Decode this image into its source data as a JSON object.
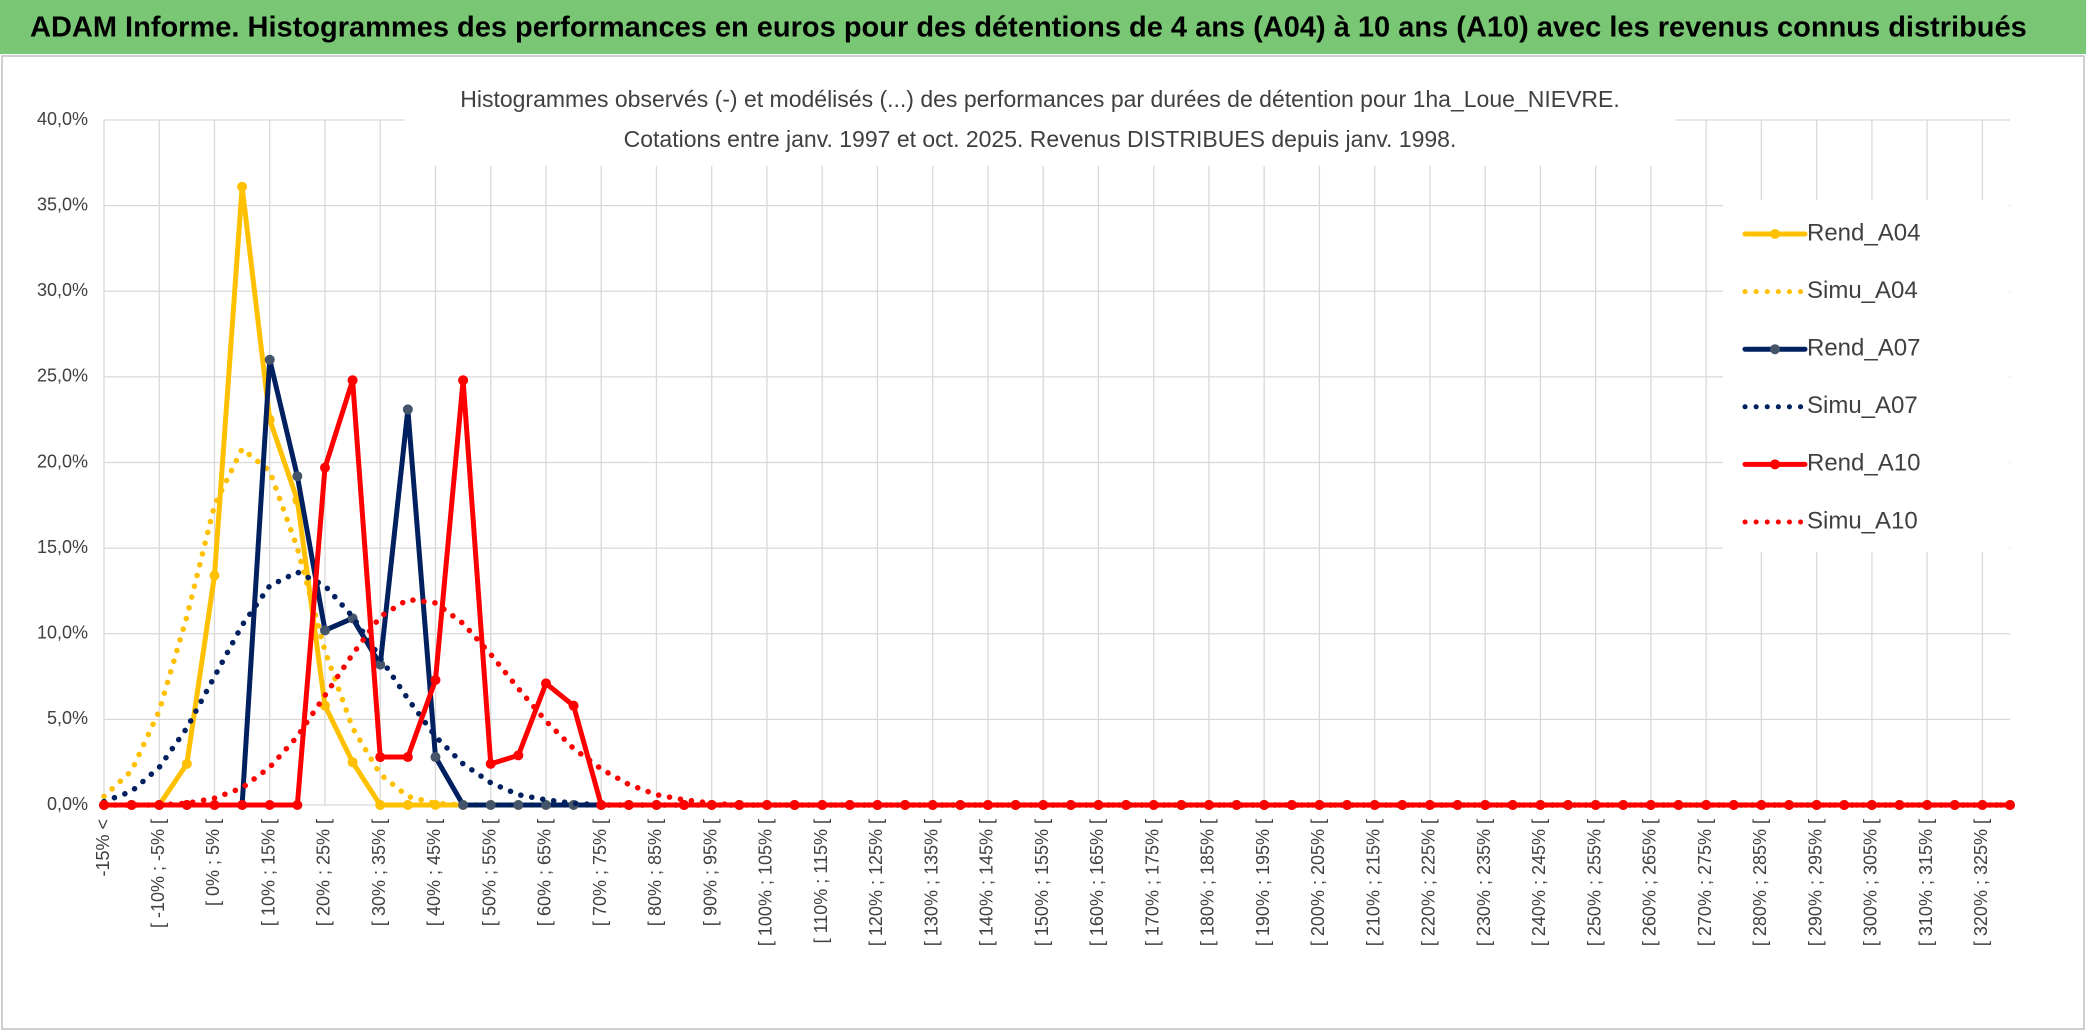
{
  "header": {
    "title": "ADAM Informe. Histogrammes des performances en euros pour des détentions de 4 ans (A04) à 10 ans (A10) avec les revenus connus distribués"
  },
  "chart_data": {
    "type": "line",
    "title": "Histogrammes observés (-) et modélisés (...) des performances par durées de détention pour 1ha_Loue_NIEVRE.",
    "subtitle": "Cotations entre janv. 1997 et oct. 2025. Revenus DISTRIBUES depuis janv. 1998.",
    "categories": [
      "-15% <",
      null,
      "[ -10% ; -5% [",
      null,
      "[ 0% ; 5% [",
      null,
      "[ 10% ; 15% [",
      null,
      "[ 20% ; 25% [",
      null,
      "[ 30% ; 35% [",
      null,
      "[ 40% ; 45% [",
      null,
      "[ 50% ; 55% [",
      null,
      "[ 60% ; 65% [",
      null,
      "[ 70% ; 75% [",
      null,
      "[ 80% ; 85% [",
      null,
      "[ 90% ; 95% [",
      null,
      "[ 100% ; 105% [",
      null,
      "[ 110% ; 115% [",
      null,
      "[ 120% ; 125% [",
      null,
      "[ 130% ; 135% [",
      null,
      "[ 140% ; 145% [",
      null,
      "[ 150% ; 155% [",
      null,
      "[ 160% ; 165% [",
      null,
      "[ 170% ; 175% [",
      null,
      "[ 180% ; 185% [",
      null,
      "[ 190% ; 195% [",
      null,
      "[ 200% ; 205% [",
      null,
      "[ 210% ; 215% [",
      null,
      "[ 220% ; 225% [",
      null,
      "[ 230% ; 235% [",
      null,
      "[ 240% ; 245% [",
      null,
      "[ 250% ; 255% [",
      null,
      "[ 260% ; 265% [",
      null,
      "[ 270% ; 275% [",
      null,
      "[ 280% ; 285% [",
      null,
      "[ 290% ; 295% [",
      null,
      "[ 300% ; 305% [",
      null,
      "[ 310% ; 315% [",
      null,
      "[ 320% ; 325% [",
      null
    ],
    "series": [
      {
        "name": "Rend_A04",
        "color": "#ffc000",
        "marker_color": "#ffc000",
        "dotted": false,
        "markers": true,
        "values": [
          0,
          0,
          0,
          2.4,
          13.4,
          36.1,
          22.5,
          17.8,
          5.8,
          2.5,
          0,
          0,
          0,
          0,
          0,
          0,
          0,
          0,
          0,
          0,
          0,
          0,
          0,
          0,
          0,
          0,
          0,
          0,
          0,
          0,
          0,
          0,
          0,
          0,
          0,
          0,
          0,
          0,
          0,
          0,
          0,
          0,
          0,
          0,
          0,
          0,
          0,
          0,
          0,
          0,
          0,
          0,
          0,
          0,
          0,
          0,
          0,
          0,
          0,
          0,
          0,
          0,
          0,
          0,
          0,
          0,
          0,
          0,
          0,
          0
        ]
      },
      {
        "name": "Simu_A04",
        "color": "#ffc000",
        "dotted": true,
        "markers": false,
        "values": [
          0.5,
          2,
          5.5,
          11,
          17.5,
          20.8,
          19.5,
          15,
          9,
          4.5,
          1.8,
          0.5,
          0.1,
          0,
          0,
          0,
          0,
          0,
          0,
          0,
          0,
          0,
          0,
          0,
          0,
          0,
          0,
          0,
          0,
          0,
          0,
          0,
          0,
          0,
          0,
          0,
          0,
          0,
          0,
          0,
          0,
          0,
          0,
          0,
          0,
          0,
          0,
          0,
          0,
          0,
          0,
          0,
          0,
          0,
          0,
          0,
          0,
          0,
          0,
          0,
          0,
          0,
          0,
          0,
          0,
          0,
          0,
          0,
          0,
          0
        ]
      },
      {
        "name": "Rend_A07",
        "color": "#002060",
        "marker_color": "#44546a",
        "dotted": false,
        "markers": true,
        "values": [
          0,
          0,
          0,
          0,
          0,
          0,
          26,
          19.2,
          10.2,
          10.9,
          8.2,
          23.1,
          2.8,
          0,
          0,
          0,
          0,
          0,
          0,
          0,
          0,
          0,
          0,
          0,
          0,
          0,
          0,
          0,
          0,
          0,
          0,
          0,
          0,
          0,
          0,
          0,
          0,
          0,
          0,
          0,
          0,
          0,
          0,
          0,
          0,
          0,
          0,
          0,
          0,
          0,
          0,
          0,
          0,
          0,
          0,
          0,
          0,
          0,
          0,
          0,
          0,
          0,
          0,
          0,
          0,
          0,
          0,
          0,
          0,
          0
        ]
      },
      {
        "name": "Simu_A07",
        "color": "#002060",
        "dotted": true,
        "markers": false,
        "values": [
          0.2,
          0.8,
          2.2,
          4.5,
          7.5,
          10.5,
          12.8,
          13.6,
          12.8,
          11,
          8.6,
          6.2,
          4,
          2.4,
          1.3,
          0.6,
          0.3,
          0.1,
          0,
          0,
          0,
          0,
          0,
          0,
          0,
          0,
          0,
          0,
          0,
          0,
          0,
          0,
          0,
          0,
          0,
          0,
          0,
          0,
          0,
          0,
          0,
          0,
          0,
          0,
          0,
          0,
          0,
          0,
          0,
          0,
          0,
          0,
          0,
          0,
          0,
          0,
          0,
          0,
          0,
          0,
          0,
          0,
          0,
          0,
          0,
          0,
          0,
          0,
          0,
          0
        ]
      },
      {
        "name": "Rend_A10",
        "color": "#ff0000",
        "marker_color": "#ff0000",
        "dotted": false,
        "markers": true,
        "values": [
          0,
          0,
          0,
          0,
          0,
          0,
          0,
          0,
          19.7,
          24.8,
          2.8,
          2.8,
          7.3,
          24.8,
          2.4,
          2.9,
          7.1,
          5.8,
          0,
          0,
          0,
          0,
          0,
          0,
          0,
          0,
          0,
          0,
          0,
          0,
          0,
          0,
          0,
          0,
          0,
          0,
          0,
          0,
          0,
          0,
          0,
          0,
          0,
          0,
          0,
          0,
          0,
          0,
          0,
          0,
          0,
          0,
          0,
          0,
          0,
          0,
          0,
          0,
          0,
          0,
          0,
          0,
          0,
          0,
          0,
          0,
          0,
          0,
          0,
          0
        ]
      },
      {
        "name": "Simu_A10",
        "color": "#ff0000",
        "dotted": true,
        "markers": false,
        "values": [
          0,
          0,
          0,
          0.1,
          0.4,
          1,
          2.2,
          4,
          6.4,
          8.8,
          11,
          12,
          11.8,
          10.6,
          8.8,
          6.8,
          4.9,
          3.3,
          2.1,
          1.2,
          0.6,
          0.3,
          0.1,
          0,
          0,
          0,
          0,
          0,
          0,
          0,
          0,
          0,
          0,
          0,
          0,
          0,
          0,
          0,
          0,
          0,
          0,
          0,
          0,
          0,
          0,
          0,
          0,
          0,
          0,
          0,
          0,
          0,
          0,
          0,
          0,
          0,
          0,
          0,
          0,
          0,
          0,
          0,
          0,
          0,
          0,
          0,
          0,
          0,
          0,
          0
        ]
      }
    ],
    "ylim": [
      0,
      40
    ],
    "yticks": [
      {
        "value": 0,
        "label": "0,0%"
      },
      {
        "value": 5,
        "label": "5,0%"
      },
      {
        "value": 10,
        "label": "10,0%"
      },
      {
        "value": 15,
        "label": "15,0%"
      },
      {
        "value": 20,
        "label": "20,0%"
      },
      {
        "value": 25,
        "label": "25,0%"
      },
      {
        "value": 30,
        "label": "30,0%"
      },
      {
        "value": 35,
        "label": "35,0%"
      },
      {
        "value": 40,
        "label": "40,0%"
      }
    ],
    "grid": true,
    "legend": "upper right"
  }
}
